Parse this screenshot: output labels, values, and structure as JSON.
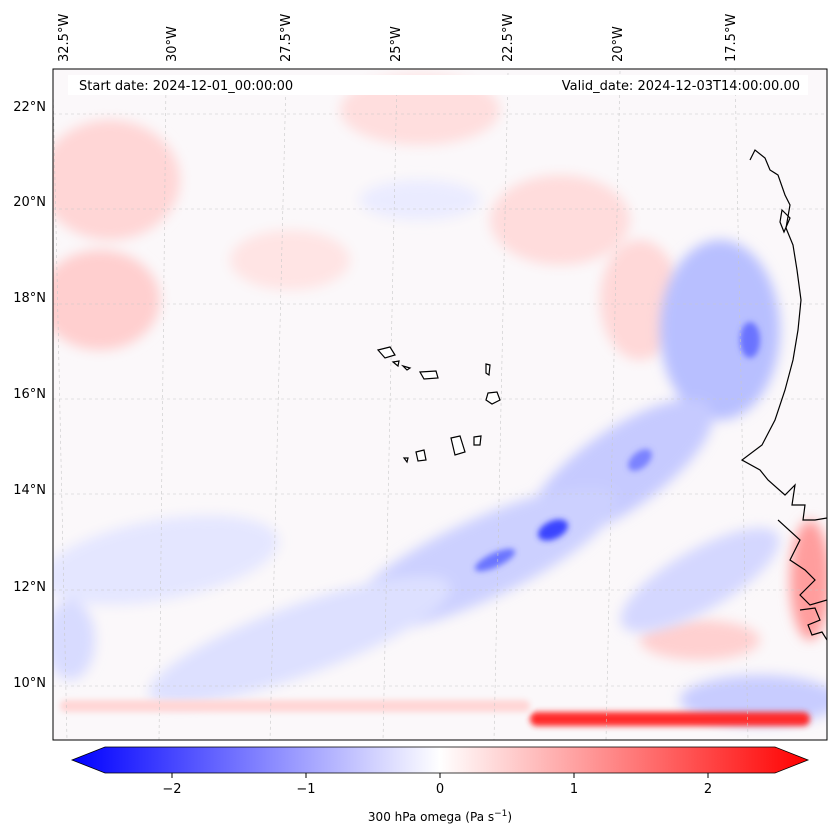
{
  "map": {
    "start_date_label": "Start date: 2024-12-01_00:00:00",
    "valid_date_label": "Valid_date: 2024-12-03T14:00:00.00",
    "longitude_labels": [
      "32.5°W",
      "30°W",
      "27.5°W",
      "25°W",
      "22.5°W",
      "20°W",
      "17.5°W"
    ],
    "latitude_labels": [
      "22°N",
      "20°N",
      "18°N",
      "16°N",
      "14°N",
      "12°N",
      "10°N"
    ],
    "colors": {
      "negative": "#0000ff",
      "neutral": "#ffffff",
      "positive": "#ff0000",
      "coastline": "#000000"
    }
  },
  "colorbar": {
    "label": "300 hPa omega (Pa s",
    "label_superscript": "−1",
    "label_suffix": ")",
    "tick_labels": [
      "−2",
      "−1",
      "0",
      "1",
      "2"
    ],
    "min": -2.5,
    "max": 2.5,
    "ticks": [
      -2,
      -1,
      0,
      1,
      2
    ]
  }
}
